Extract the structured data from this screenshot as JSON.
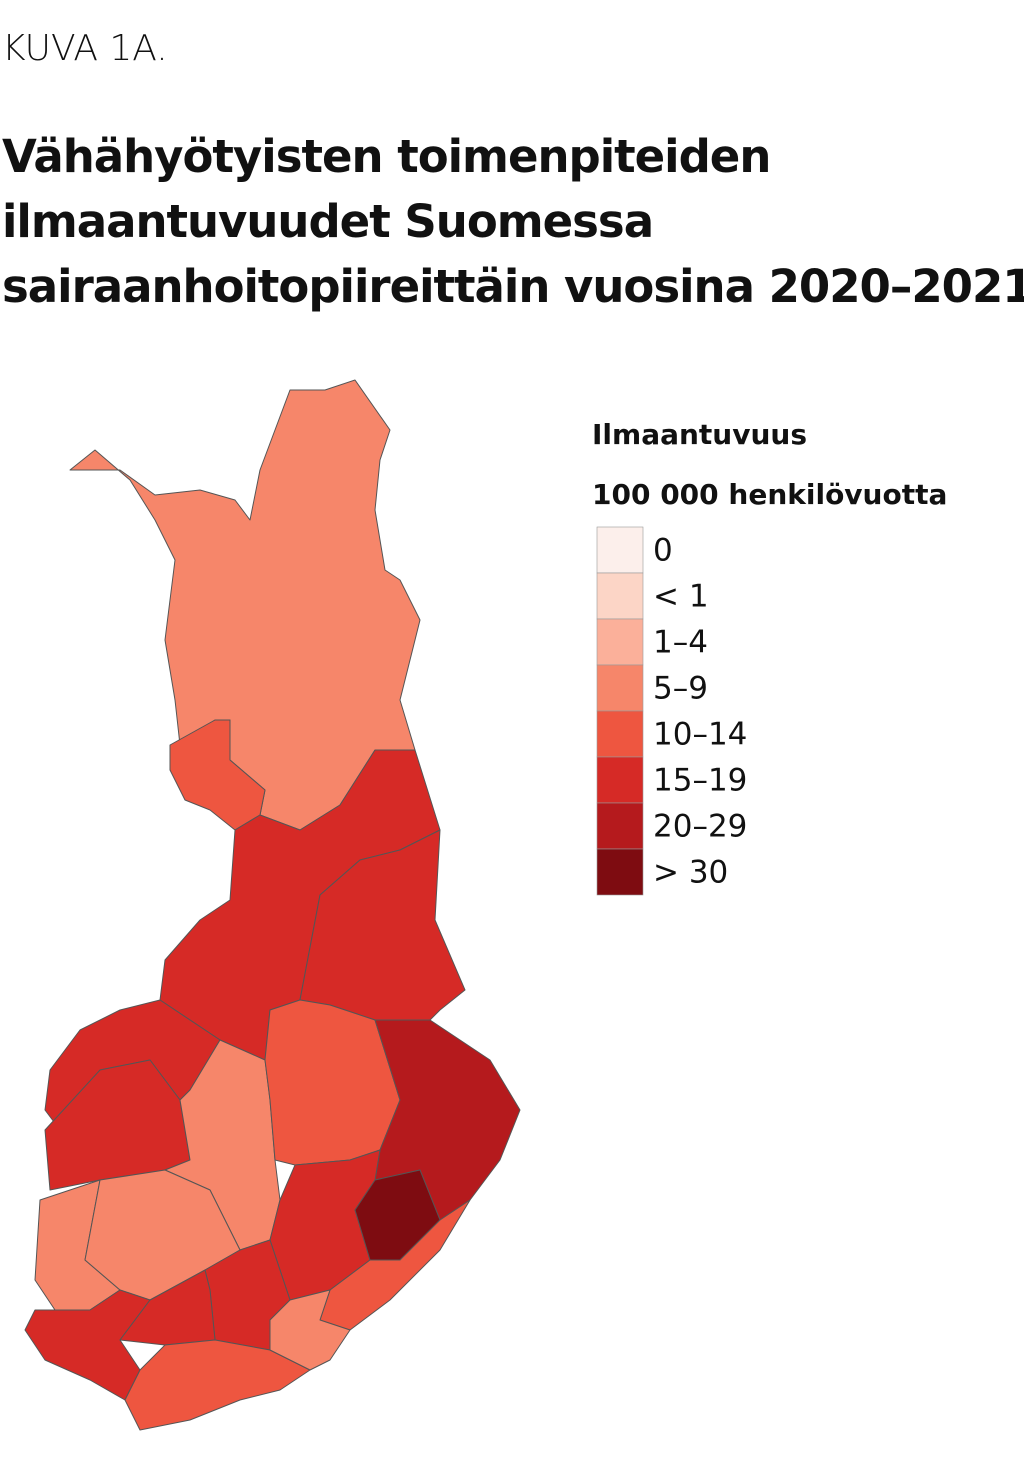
{
  "figure_label": "KUVA 1A.",
  "title": [
    "Vähähyötyisten toimenpiteiden",
    "ilmaantuvuudet Suomessa",
    "sairaanhoitopiireittäin vuosina 2020–2021"
  ],
  "legend": {
    "title": [
      "Ilmaantuvuus",
      "100 000 henkilövuotta"
    ],
    "items": [
      {
        "label": "0",
        "color": "#fcefeb"
      },
      {
        "label": "< 1",
        "color": "#fcd5c6"
      },
      {
        "label": "1–4",
        "color": "#fbb09a"
      },
      {
        "label": "5–9",
        "color": "#f6866a"
      },
      {
        "label": "10–14",
        "color": "#ee5640"
      },
      {
        "label": "15–19",
        "color": "#d62a26"
      },
      {
        "label": "20–29",
        "color": "#b51a1d"
      },
      {
        "label": "> 30",
        "color": "#7e0c11"
      }
    ]
  }
}
